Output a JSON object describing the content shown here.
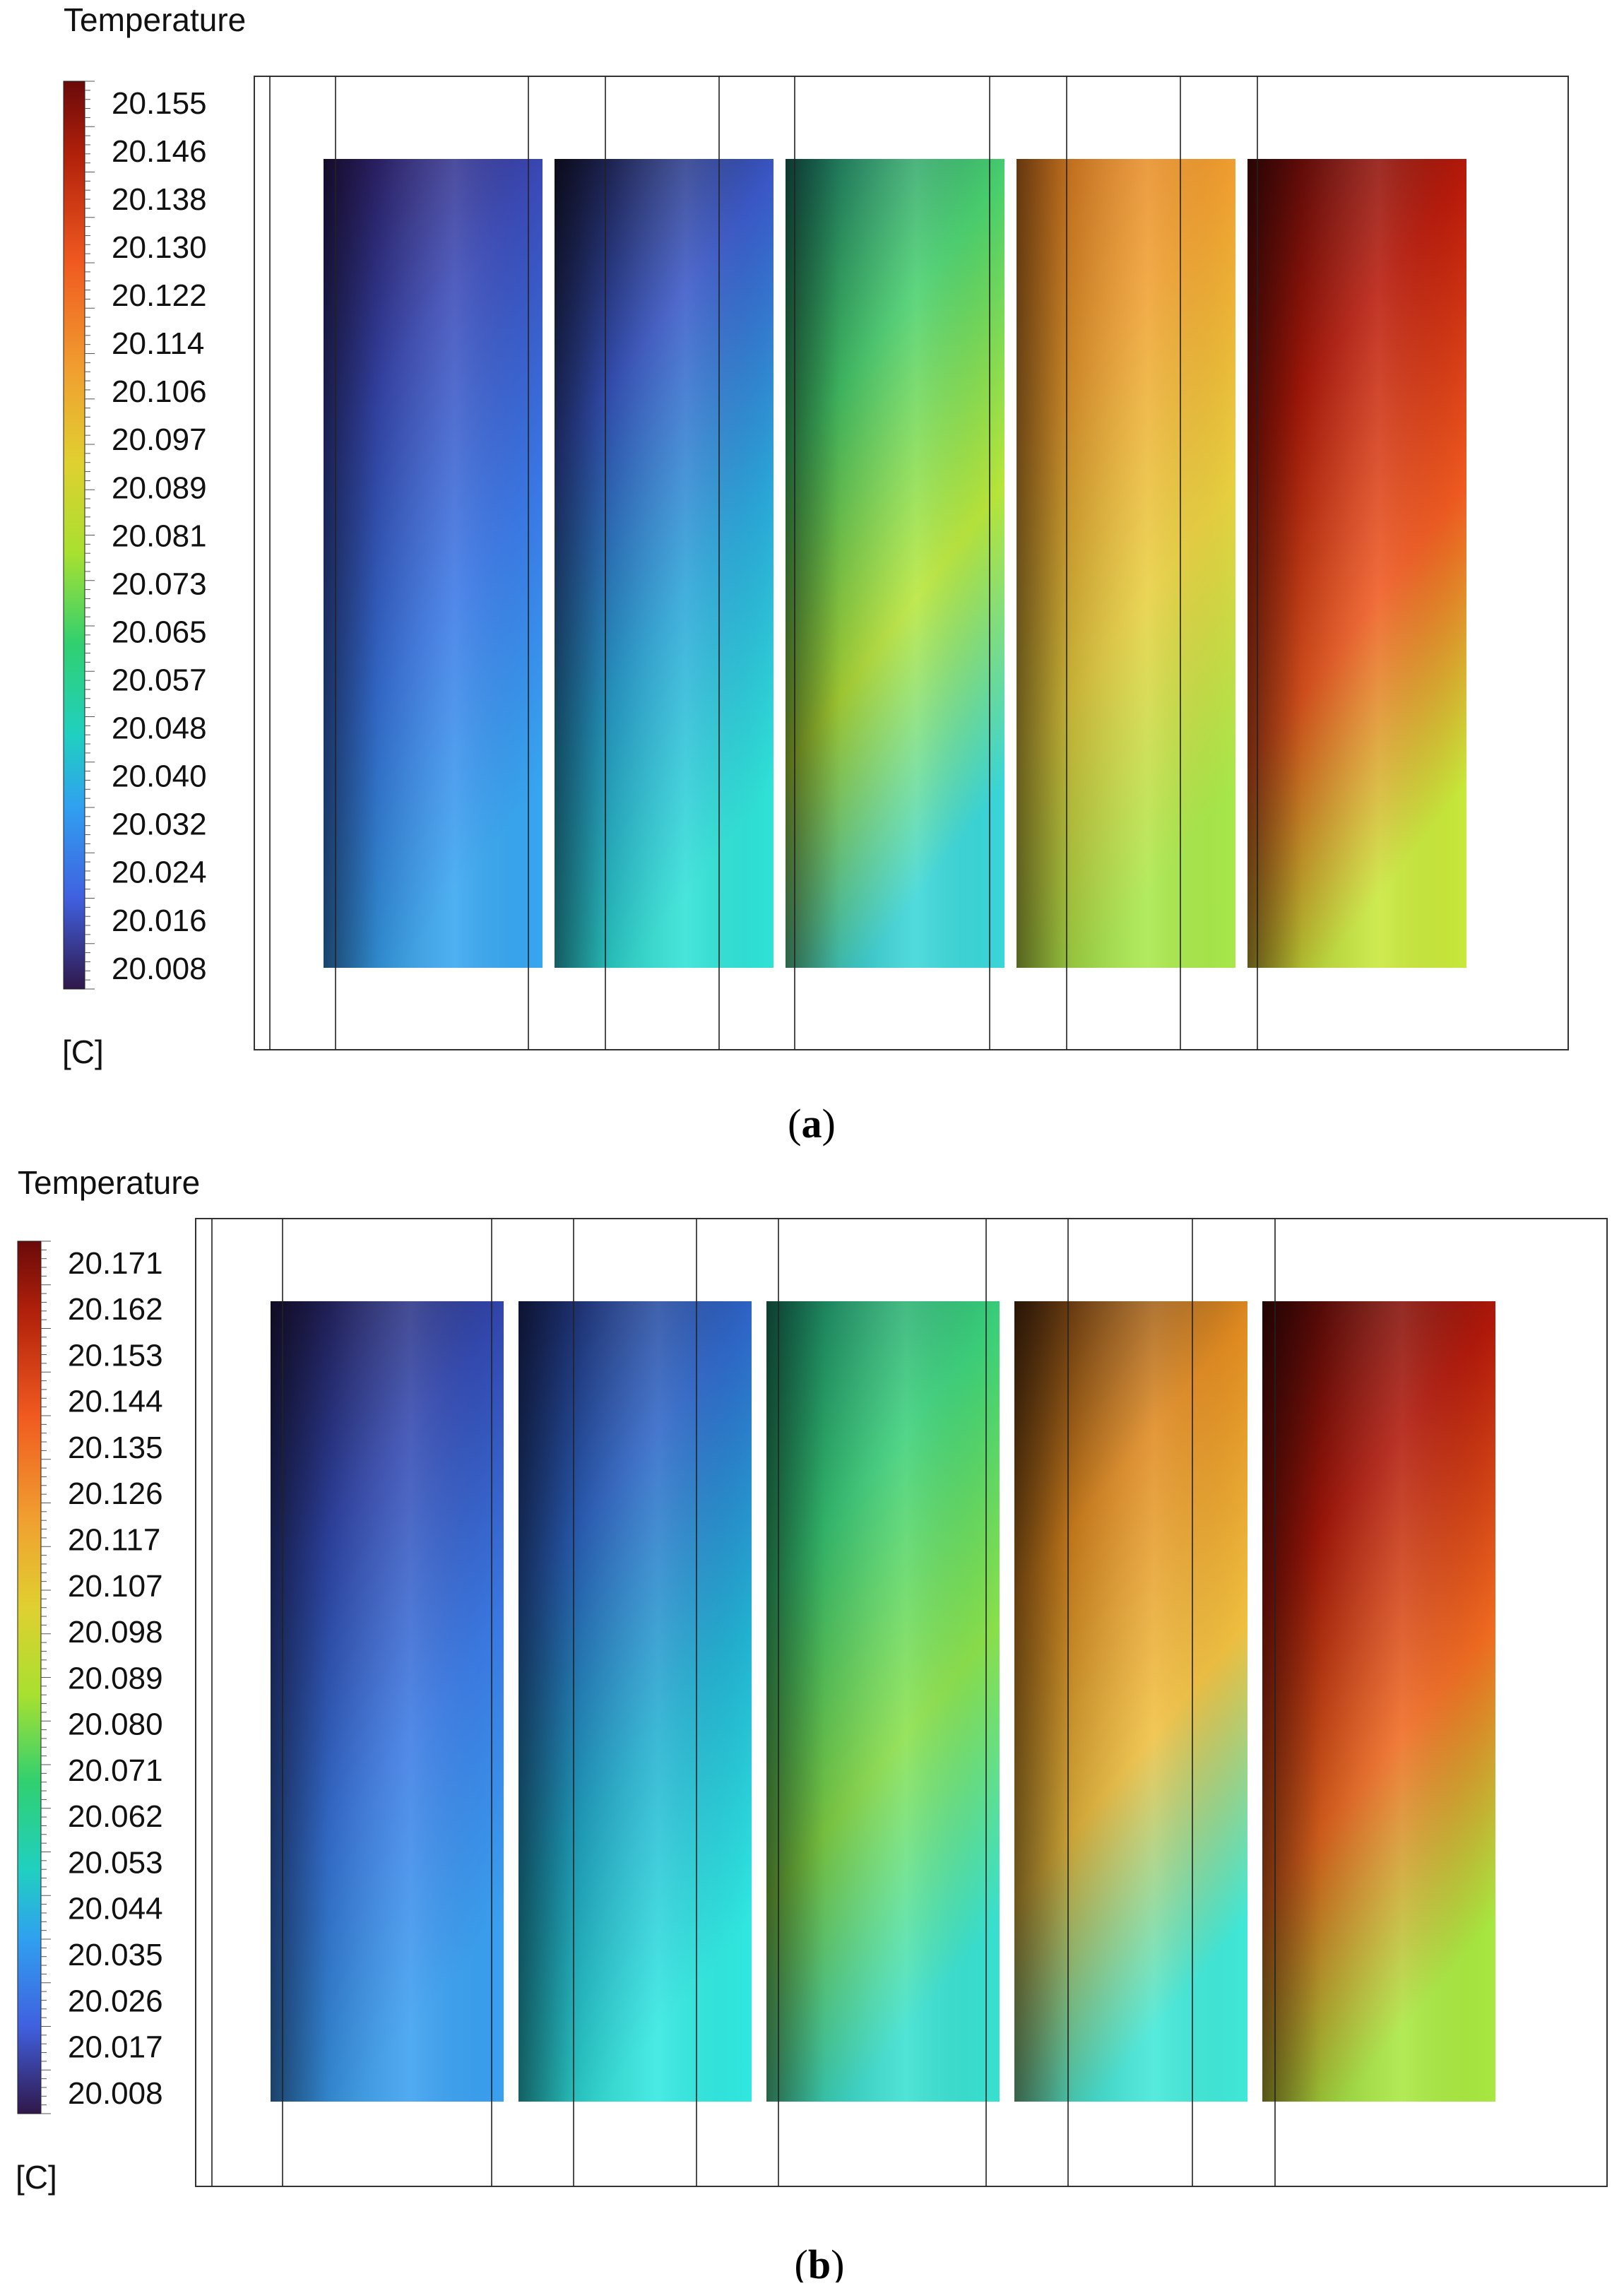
{
  "panels": [
    {
      "id": "a",
      "legend": {
        "title": "Temperature",
        "unit": "[C]",
        "ticks": [
          "20.155",
          "20.146",
          "20.138",
          "20.130",
          "20.122",
          "20.114",
          "20.106",
          "20.097",
          "20.089",
          "20.081",
          "20.073",
          "20.065",
          "20.057",
          "20.048",
          "20.040",
          "20.032",
          "20.024",
          "20.016",
          "20.008"
        ]
      },
      "caption_letter": "a"
    },
    {
      "id": "b",
      "legend": {
        "title": "Temperature",
        "unit": "[C]",
        "ticks": [
          "20.171",
          "20.162",
          "20.153",
          "20.144",
          "20.135",
          "20.126",
          "20.117",
          "20.107",
          "20.098",
          "20.089",
          "20.080",
          "20.071",
          "20.062",
          "20.053",
          "20.044",
          "20.035",
          "20.026",
          "20.017",
          "20.008"
        ]
      },
      "caption_letter": "b"
    }
  ],
  "colors": {
    "cell_gradients_a": [
      [
        "#2e1a5e",
        "#3a4ab8",
        "#3a78e6",
        "#37a6f0"
      ],
      [
        "#1a1a3e",
        "#3a58c8",
        "#2aa6d8",
        "#2fe2d6"
      ],
      [
        "#1c7a6a",
        "#48d06e",
        "#b8e63a",
        "#3ad6d8"
      ],
      [
        "#e07a20",
        "#f0a030",
        "#e8d040",
        "#a8e84a"
      ],
      [
        "#5a0a0a",
        "#b81a0a",
        "#f05a20",
        "#c8e83a"
      ]
    ],
    "cell_gradients_b": [
      [
        "#221a4e",
        "#3248b0",
        "#3a7ae4",
        "#3aa0f0"
      ],
      [
        "#1e2a6e",
        "#2e66c8",
        "#22b0d0",
        "#30e8e0"
      ],
      [
        "#1a8a6a",
        "#3ad07a",
        "#8ae04a",
        "#38e0d0"
      ],
      [
        "#5a3010",
        "#e08a20",
        "#f0c040",
        "#40e8d8"
      ],
      [
        "#4a0808",
        "#b0180a",
        "#f06a20",
        "#a8e840"
      ]
    ]
  }
}
